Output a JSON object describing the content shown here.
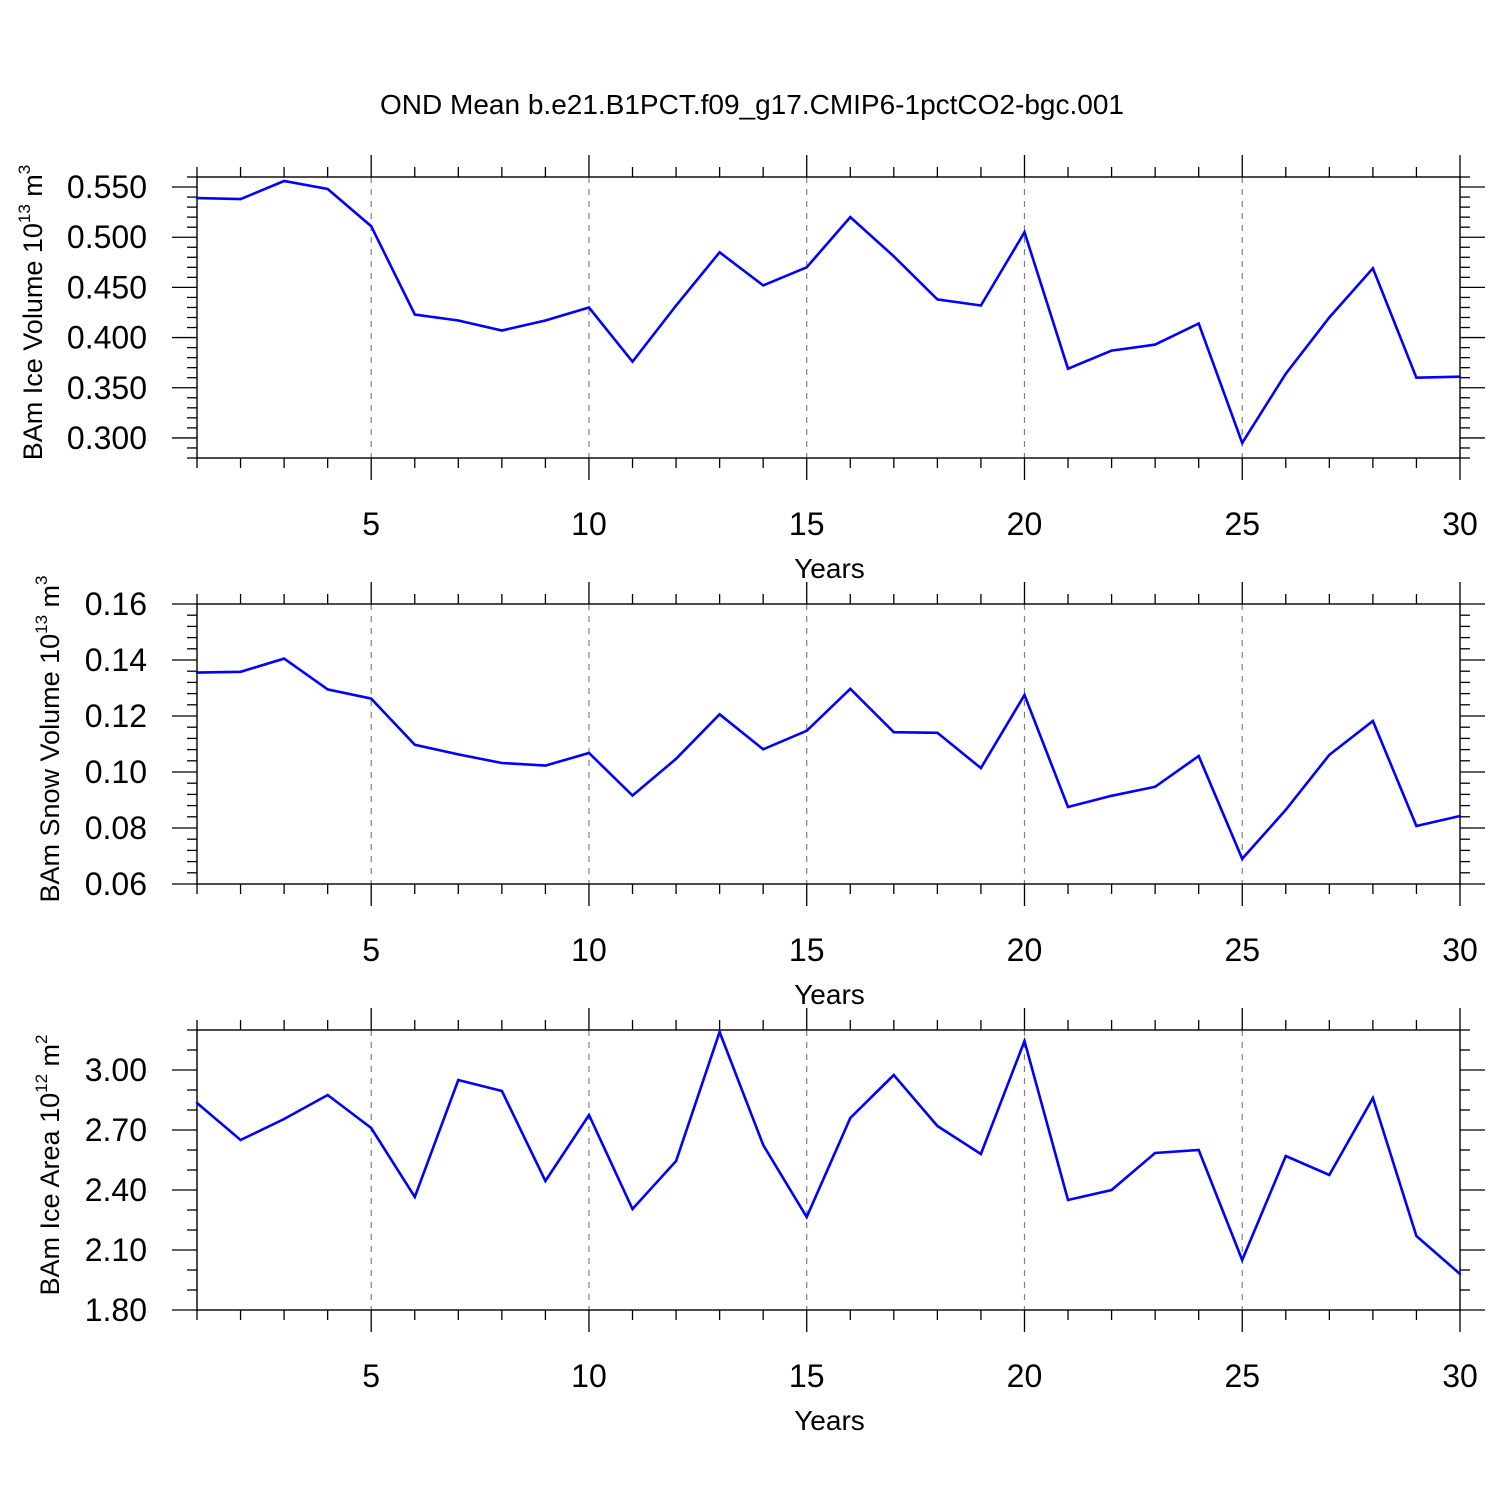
{
  "title": "OND Mean b.e21.B1PCT.f09_g17.CMIP6-1pctCO2-bgc.001",
  "colors": {
    "line": "#0000ff",
    "axis": "#000000",
    "grid": "#808080"
  },
  "chart_data": [
    {
      "type": "line",
      "ylabel": {
        "prefix": "BAm Ice Volume 10",
        "exp": "13",
        "unit": " m",
        "unit_exp": "3"
      },
      "xlabel": "Years",
      "xlim": [
        1,
        30
      ],
      "ylim": [
        0.28,
        0.56
      ],
      "xticks": [
        5,
        10,
        15,
        20,
        25,
        30
      ],
      "yticks": [
        0.3,
        0.35,
        0.4,
        0.45,
        0.5,
        0.55
      ],
      "ytick_labels": [
        "0.300",
        "0.350",
        "0.400",
        "0.450",
        "0.500",
        "0.550"
      ],
      "yminor_step": 0.01,
      "grid": "vertical-dashed",
      "x": [
        1,
        2,
        3,
        4,
        5,
        6,
        7,
        8,
        9,
        10,
        11,
        12,
        13,
        14,
        15,
        16,
        17,
        18,
        19,
        20,
        21,
        22,
        23,
        24,
        25,
        26,
        27,
        28,
        29,
        30
      ],
      "series": [
        {
          "name": "BAm Ice Volume",
          "values": [
            0.539,
            0.538,
            0.556,
            0.548,
            0.511,
            0.423,
            0.417,
            0.407,
            0.417,
            0.43,
            0.376,
            0.432,
            0.485,
            0.452,
            0.47,
            0.52,
            0.481,
            0.438,
            0.432,
            0.505,
            0.369,
            0.387,
            0.393,
            0.414,
            0.295,
            0.364,
            0.42,
            0.469,
            0.36,
            0.361
          ]
        }
      ]
    },
    {
      "type": "line",
      "ylabel": {
        "prefix": "BAm Snow Volume 10",
        "exp": "13",
        "unit": " m",
        "unit_exp": "3"
      },
      "xlabel": "Years",
      "xlim": [
        1,
        30
      ],
      "ylim": [
        0.06,
        0.16
      ],
      "xticks": [
        5,
        10,
        15,
        20,
        25,
        30
      ],
      "yticks": [
        0.06,
        0.08,
        0.1,
        0.12,
        0.14,
        0.16
      ],
      "ytick_labels": [
        "0.06",
        "0.08",
        "0.10",
        "0.12",
        "0.14",
        "0.16"
      ],
      "yminor_step": 0.004,
      "grid": "vertical-dashed",
      "x": [
        1,
        2,
        3,
        4,
        5,
        6,
        7,
        8,
        9,
        10,
        11,
        12,
        13,
        14,
        15,
        16,
        17,
        18,
        19,
        20,
        21,
        22,
        23,
        24,
        25,
        26,
        27,
        28,
        29,
        30
      ],
      "series": [
        {
          "name": "BAm Snow Volume",
          "values": [
            0.1355,
            0.1358,
            0.1405,
            0.1295,
            0.1262,
            0.1097,
            0.1063,
            0.1032,
            0.1023,
            0.1068,
            0.0916,
            0.1047,
            0.1206,
            0.1081,
            0.1147,
            0.1297,
            0.1142,
            0.114,
            0.1014,
            0.1275,
            0.0875,
            0.0915,
            0.0947,
            0.1057,
            0.069,
            0.0865,
            0.1061,
            0.1182,
            0.0807,
            0.0843
          ]
        }
      ]
    },
    {
      "type": "line",
      "ylabel": {
        "prefix": "BAm Ice Area 10",
        "exp": "12",
        "unit": " m",
        "unit_exp": "2"
      },
      "xlabel": "Years",
      "xlim": [
        1,
        30
      ],
      "ylim": [
        1.8,
        3.2
      ],
      "xticks": [
        5,
        10,
        15,
        20,
        25,
        30
      ],
      "yticks": [
        1.8,
        2.1,
        2.4,
        2.7,
        3.0
      ],
      "ytick_labels": [
        "1.80",
        "2.10",
        "2.40",
        "2.70",
        "3.00"
      ],
      "yminor_step": 0.1,
      "grid": "vertical-dashed",
      "x": [
        1,
        2,
        3,
        4,
        5,
        6,
        7,
        8,
        9,
        10,
        11,
        12,
        13,
        14,
        15,
        16,
        17,
        18,
        19,
        20,
        21,
        22,
        23,
        24,
        25,
        26,
        27,
        28,
        29,
        30
      ],
      "series": [
        {
          "name": "BAm Ice Area",
          "values": [
            2.835,
            2.65,
            2.755,
            2.875,
            2.71,
            2.365,
            2.95,
            2.895,
            2.445,
            2.775,
            2.305,
            2.545,
            3.19,
            2.625,
            2.265,
            2.76,
            2.975,
            2.72,
            2.58,
            3.145,
            2.35,
            2.4,
            2.585,
            2.6,
            2.05,
            2.57,
            2.475,
            2.86,
            2.17,
            1.98
          ]
        }
      ]
    }
  ]
}
